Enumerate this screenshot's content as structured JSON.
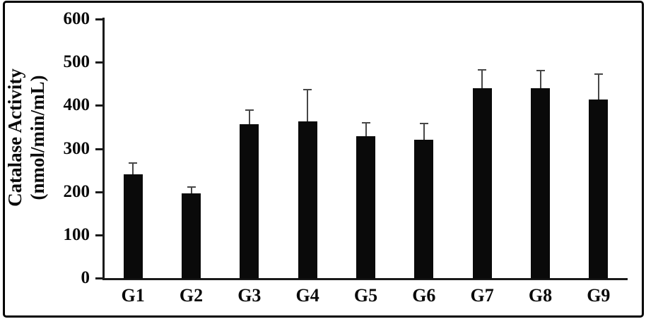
{
  "figure": {
    "background": "#ffffff",
    "border_color": "#000000"
  },
  "chart_data": {
    "type": "bar",
    "title": "",
    "categories": [
      "G1",
      "G2",
      "G3",
      "G4",
      "G5",
      "G6",
      "G7",
      "G8",
      "G9"
    ],
    "values": [
      240,
      197,
      357,
      363,
      329,
      320,
      440,
      439,
      414
    ],
    "errors_plus": [
      27,
      14,
      32,
      73,
      30,
      38,
      43,
      41,
      58
    ],
    "ylabel_lines": [
      "Catalase Activity",
      "(nmol/min/mL)"
    ],
    "xlabel": "",
    "ylim": [
      0,
      600
    ],
    "yticks": [
      0,
      100,
      200,
      300,
      400,
      500,
      600
    ],
    "bar_color": "#0a0a0a",
    "error_bar_color": "#474747",
    "axis_color": "#1a1a1a",
    "grid": false,
    "legend": null
  }
}
